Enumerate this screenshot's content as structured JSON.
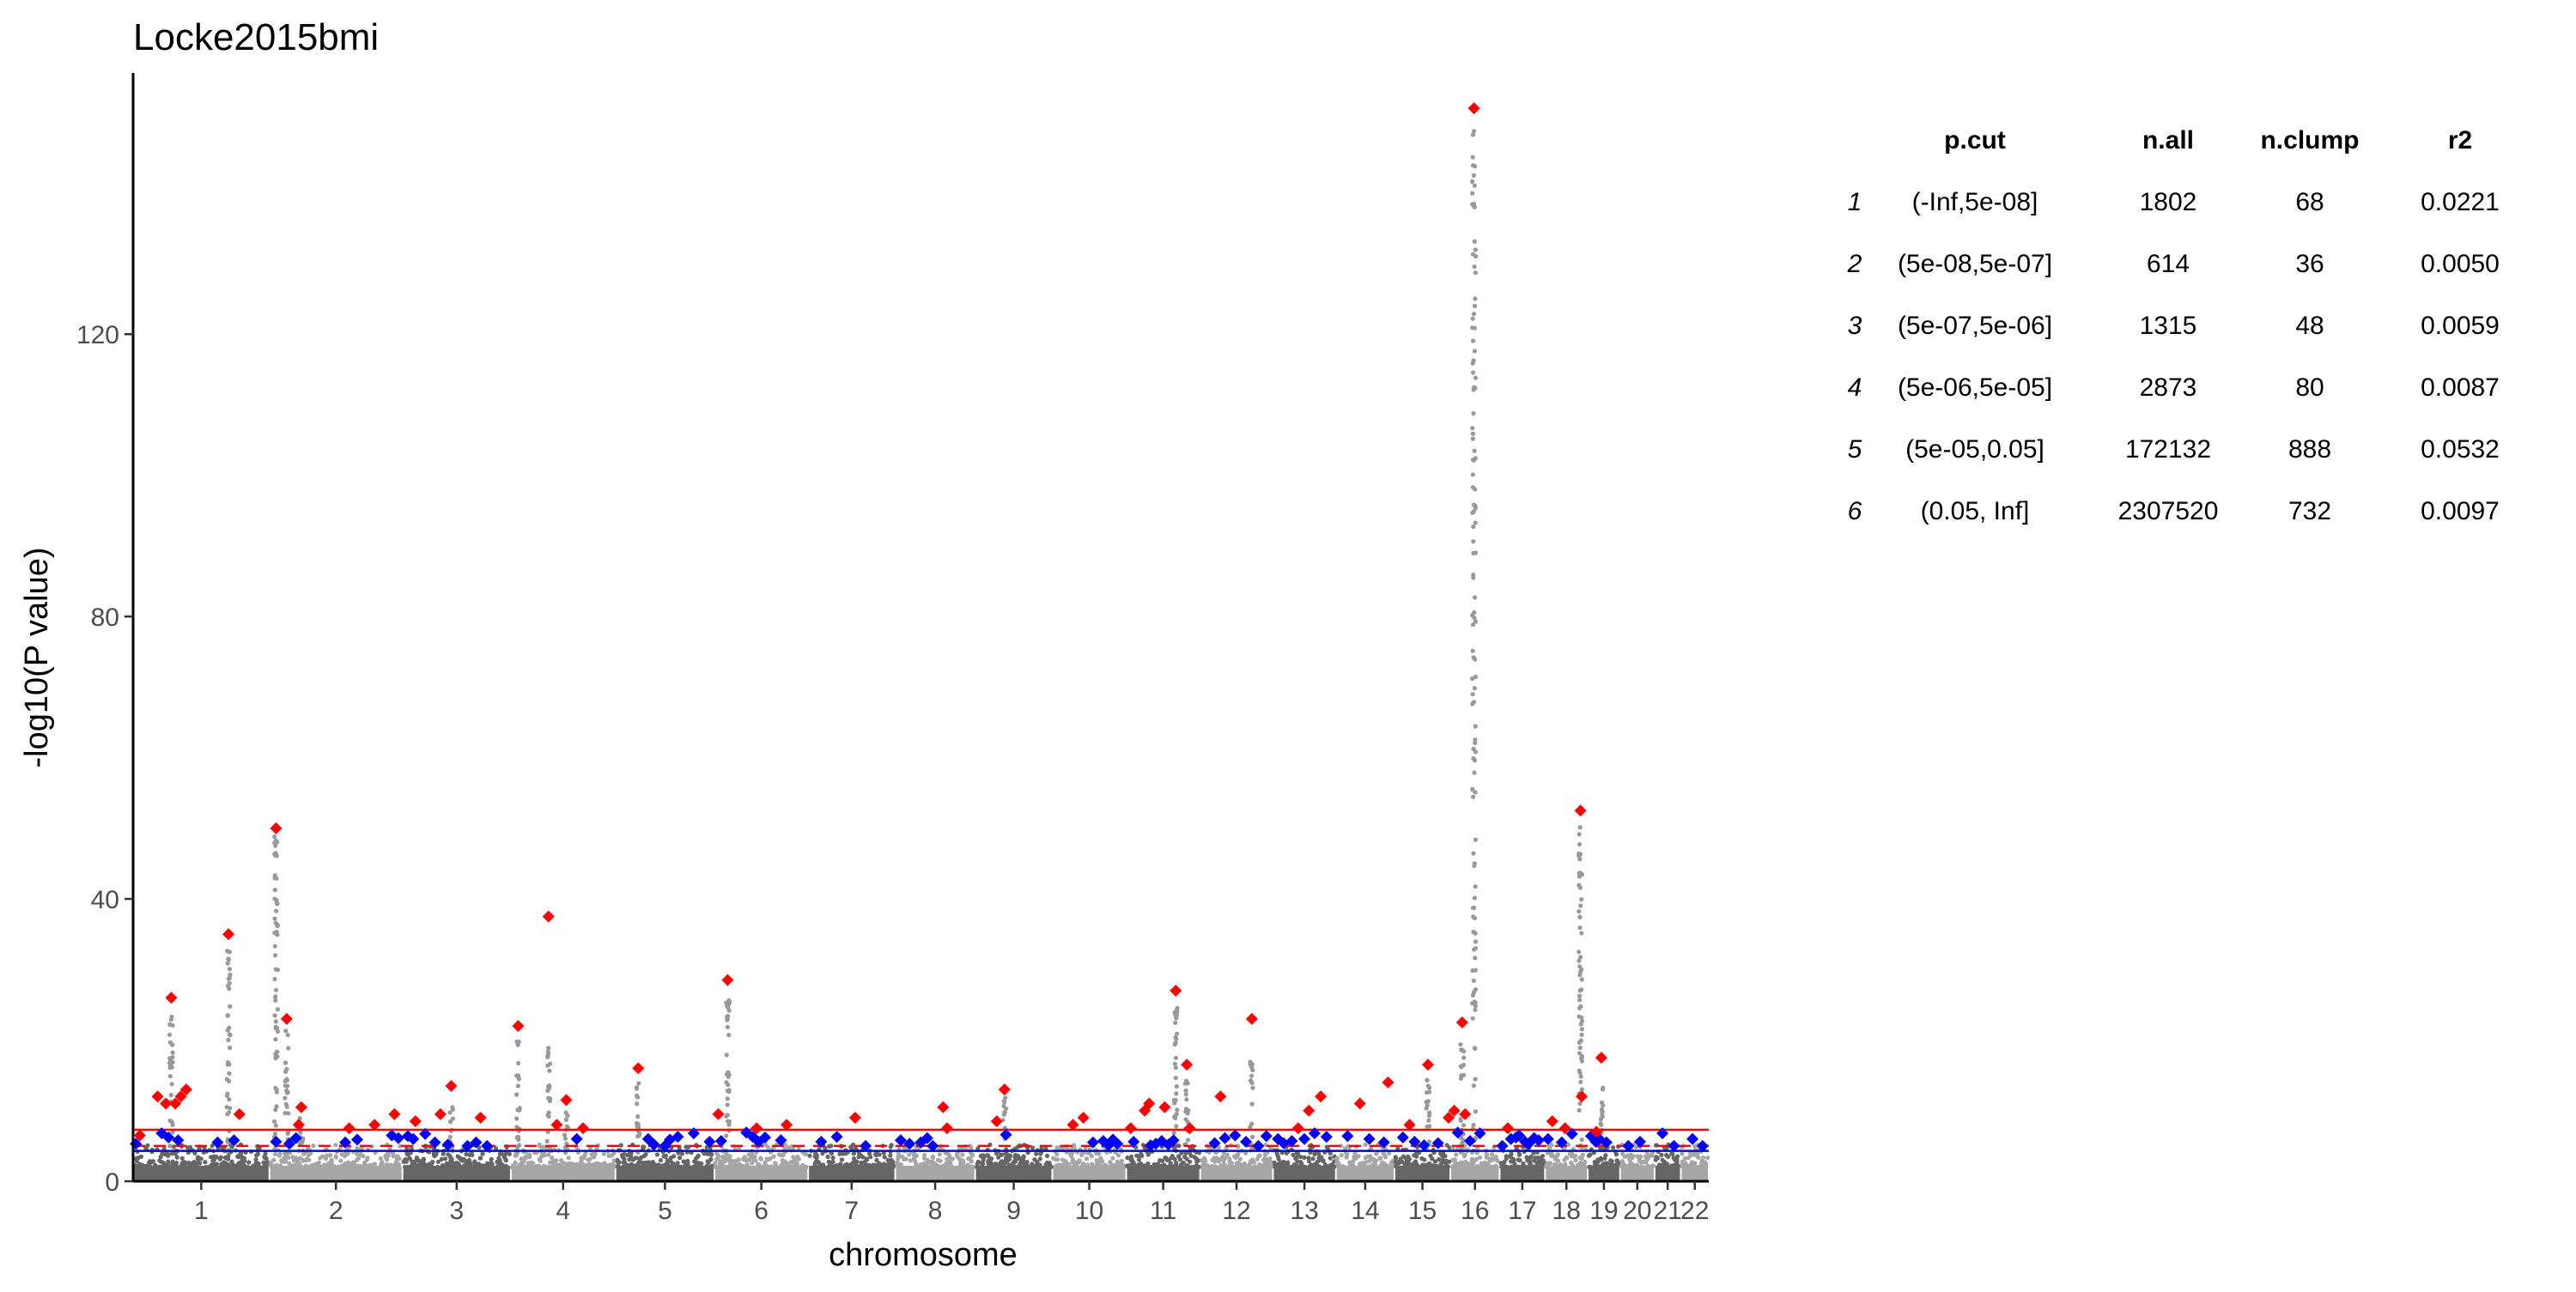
{
  "chart_data": {
    "type": "scatter",
    "title": "Locke2015bmi",
    "xlabel": "chromosome",
    "ylabel": "-log10(P value)",
    "ylim": [
      0,
      157
    ],
    "yticks": [
      0,
      40,
      80,
      120
    ],
    "grid": false,
    "chromosomes": [
      {
        "label": "1",
        "size": 249
      },
      {
        "label": "2",
        "size": 243
      },
      {
        "label": "3",
        "size": 198
      },
      {
        "label": "4",
        "size": 191
      },
      {
        "label": "5",
        "size": 181
      },
      {
        "label": "6",
        "size": 171
      },
      {
        "label": "7",
        "size": 159
      },
      {
        "label": "8",
        "size": 146
      },
      {
        "label": "9",
        "size": 141
      },
      {
        "label": "10",
        "size": 135
      },
      {
        "label": "11",
        "size": 135
      },
      {
        "label": "12",
        "size": 133
      },
      {
        "label": "13",
        "size": 115
      },
      {
        "label": "14",
        "size": 107
      },
      {
        "label": "15",
        "size": 102
      },
      {
        "label": "16",
        "size": 90
      },
      {
        "label": "17",
        "size": 83
      },
      {
        "label": "18",
        "size": 78
      },
      {
        "label": "19",
        "size": 59
      },
      {
        "label": "20",
        "size": 63
      },
      {
        "label": "21",
        "size": 48
      },
      {
        "label": "22",
        "size": 51
      }
    ],
    "threshold_lines": [
      {
        "value": 7.3,
        "style": "solid",
        "color": "#ff0000"
      },
      {
        "value": 5.0,
        "style": "dashed",
        "color": "#ff0000"
      },
      {
        "value": 4.3,
        "style": "solid",
        "color": "#0000ff"
      }
    ],
    "peaks": [
      {
        "chr": "1",
        "pos": 0.05,
        "y": 6.5
      },
      {
        "chr": "1",
        "pos": 0.18,
        "y": 12
      },
      {
        "chr": "1",
        "pos": 0.24,
        "y": 11
      },
      {
        "chr": "1",
        "pos": 0.28,
        "y": 26
      },
      {
        "chr": "1",
        "pos": 0.31,
        "y": 11
      },
      {
        "chr": "1",
        "pos": 0.35,
        "y": 12
      },
      {
        "chr": "1",
        "pos": 0.39,
        "y": 13
      },
      {
        "chr": "1",
        "pos": 0.7,
        "y": 35
      },
      {
        "chr": "1",
        "pos": 0.78,
        "y": 9.5
      },
      {
        "chr": "2",
        "pos": 0.05,
        "y": 50
      },
      {
        "chr": "2",
        "pos": 0.13,
        "y": 23
      },
      {
        "chr": "2",
        "pos": 0.24,
        "y": 10.5
      },
      {
        "chr": "2",
        "pos": 0.22,
        "y": 8
      },
      {
        "chr": "2",
        "pos": 0.6,
        "y": 7.5
      },
      {
        "chr": "2",
        "pos": 0.79,
        "y": 8
      },
      {
        "chr": "2",
        "pos": 0.94,
        "y": 9.5
      },
      {
        "chr": "3",
        "pos": 0.12,
        "y": 8.5
      },
      {
        "chr": "3",
        "pos": 0.35,
        "y": 9.5
      },
      {
        "chr": "3",
        "pos": 0.45,
        "y": 13.5
      },
      {
        "chr": "3",
        "pos": 0.72,
        "y": 9
      },
      {
        "chr": "4",
        "pos": 0.07,
        "y": 22
      },
      {
        "chr": "4",
        "pos": 0.36,
        "y": 37.5
      },
      {
        "chr": "4",
        "pos": 0.44,
        "y": 8
      },
      {
        "chr": "4",
        "pos": 0.53,
        "y": 11.5
      },
      {
        "chr": "4",
        "pos": 0.69,
        "y": 7.5
      },
      {
        "chr": "5",
        "pos": 0.23,
        "y": 16
      },
      {
        "chr": "6",
        "pos": 0.04,
        "y": 9.5
      },
      {
        "chr": "6",
        "pos": 0.14,
        "y": 28.5
      },
      {
        "chr": "6",
        "pos": 0.45,
        "y": 7.5
      },
      {
        "chr": "6",
        "pos": 0.77,
        "y": 8
      },
      {
        "chr": "7",
        "pos": 0.54,
        "y": 9
      },
      {
        "chr": "8",
        "pos": 0.6,
        "y": 10.5
      },
      {
        "chr": "8",
        "pos": 0.65,
        "y": 7.5
      },
      {
        "chr": "9",
        "pos": 0.28,
        "y": 8.5
      },
      {
        "chr": "9",
        "pos": 0.38,
        "y": 13
      },
      {
        "chr": "10",
        "pos": 0.28,
        "y": 8
      },
      {
        "chr": "10",
        "pos": 0.42,
        "y": 9
      },
      {
        "chr": "11",
        "pos": 0.06,
        "y": 7.5
      },
      {
        "chr": "11",
        "pos": 0.25,
        "y": 10
      },
      {
        "chr": "11",
        "pos": 0.31,
        "y": 11
      },
      {
        "chr": "11",
        "pos": 0.52,
        "y": 10.5
      },
      {
        "chr": "11",
        "pos": 0.67,
        "y": 27
      },
      {
        "chr": "11",
        "pos": 0.82,
        "y": 16.5
      },
      {
        "chr": "11",
        "pos": 0.86,
        "y": 7.5
      },
      {
        "chr": "12",
        "pos": 0.28,
        "y": 12
      },
      {
        "chr": "12",
        "pos": 0.71,
        "y": 23
      },
      {
        "chr": "13",
        "pos": 0.4,
        "y": 7.5
      },
      {
        "chr": "13",
        "pos": 0.57,
        "y": 10
      },
      {
        "chr": "13",
        "pos": 0.76,
        "y": 12
      },
      {
        "chr": "14",
        "pos": 0.41,
        "y": 11
      },
      {
        "chr": "14",
        "pos": 0.89,
        "y": 14
      },
      {
        "chr": "15",
        "pos": 0.27,
        "y": 8
      },
      {
        "chr": "15",
        "pos": 0.6,
        "y": 16.5
      },
      {
        "chr": "15",
        "pos": 0.97,
        "y": 9
      },
      {
        "chr": "16",
        "pos": 0.08,
        "y": 10
      },
      {
        "chr": "16",
        "pos": 0.24,
        "y": 22.5
      },
      {
        "chr": "16",
        "pos": 0.3,
        "y": 9.5
      },
      {
        "chr": "16",
        "pos": 0.48,
        "y": 152
      },
      {
        "chr": "17",
        "pos": 0.18,
        "y": 7.5
      },
      {
        "chr": "18",
        "pos": 0.17,
        "y": 8.5
      },
      {
        "chr": "18",
        "pos": 0.47,
        "y": 7.5
      },
      {
        "chr": "18",
        "pos": 0.83,
        "y": 52.5
      },
      {
        "chr": "18",
        "pos": 0.86,
        "y": 12
      },
      {
        "chr": "19",
        "pos": 0.27,
        "y": 7
      },
      {
        "chr": "19",
        "pos": 0.42,
        "y": 17.5
      }
    ],
    "suggestive": [
      {
        "chr": "1",
        "pos": 0.02,
        "y": 5.3
      },
      {
        "chr": "1",
        "pos": 0.21,
        "y": 6.8
      },
      {
        "chr": "1",
        "pos": 0.26,
        "y": 6.2
      },
      {
        "chr": "1",
        "pos": 0.33,
        "y": 5.8
      },
      {
        "chr": "1",
        "pos": 0.62,
        "y": 5.5
      },
      {
        "chr": "1",
        "pos": 0.74,
        "y": 5.8
      },
      {
        "chr": "2",
        "pos": 0.05,
        "y": 5.6
      },
      {
        "chr": "2",
        "pos": 0.15,
        "y": 5.3
      },
      {
        "chr": "2",
        "pos": 0.2,
        "y": 6.1
      },
      {
        "chr": "2",
        "pos": 0.57,
        "y": 5.5
      },
      {
        "chr": "2",
        "pos": 0.66,
        "y": 5.9
      },
      {
        "chr": "2",
        "pos": 0.92,
        "y": 6.5
      },
      {
        "chr": "2",
        "pos": 0.97,
        "y": 6.1
      },
      {
        "chr": "3",
        "pos": 0.05,
        "y": 6.4
      },
      {
        "chr": "3",
        "pos": 0.1,
        "y": 6.0
      },
      {
        "chr": "3",
        "pos": 0.21,
        "y": 6.7
      },
      {
        "chr": "3",
        "pos": 0.3,
        "y": 5.5
      },
      {
        "chr": "3",
        "pos": 0.42,
        "y": 5.2
      },
      {
        "chr": "3",
        "pos": 0.6,
        "y": 5.0
      },
      {
        "chr": "3",
        "pos": 0.68,
        "y": 5.5
      },
      {
        "chr": "3",
        "pos": 0.78,
        "y": 5.0
      },
      {
        "chr": "4",
        "pos": 0.63,
        "y": 6.0
      },
      {
        "chr": "5",
        "pos": 0.33,
        "y": 6.0
      },
      {
        "chr": "5",
        "pos": 0.39,
        "y": 5.2
      },
      {
        "chr": "5",
        "pos": 0.5,
        "y": 5.0
      },
      {
        "chr": "5",
        "pos": 0.55,
        "y": 5.9
      },
      {
        "chr": "5",
        "pos": 0.63,
        "y": 6.3
      },
      {
        "chr": "5",
        "pos": 0.79,
        "y": 6.8
      },
      {
        "chr": "5",
        "pos": 0.95,
        "y": 5.6
      },
      {
        "chr": "6",
        "pos": 0.07,
        "y": 5.7
      },
      {
        "chr": "6",
        "pos": 0.34,
        "y": 6.9
      },
      {
        "chr": "6",
        "pos": 0.41,
        "y": 6.3
      },
      {
        "chr": "6",
        "pos": 0.47,
        "y": 5.6
      },
      {
        "chr": "6",
        "pos": 0.54,
        "y": 6.2
      },
      {
        "chr": "6",
        "pos": 0.71,
        "y": 5.8
      },
      {
        "chr": "7",
        "pos": 0.15,
        "y": 5.6
      },
      {
        "chr": "7",
        "pos": 0.33,
        "y": 6.3
      },
      {
        "chr": "7",
        "pos": 0.66,
        "y": 5.0
      },
      {
        "chr": "8",
        "pos": 0.07,
        "y": 5.8
      },
      {
        "chr": "8",
        "pos": 0.18,
        "y": 5.3
      },
      {
        "chr": "8",
        "pos": 0.32,
        "y": 5.5
      },
      {
        "chr": "8",
        "pos": 0.4,
        "y": 6.1
      },
      {
        "chr": "8",
        "pos": 0.47,
        "y": 5.0
      },
      {
        "chr": "9",
        "pos": 0.4,
        "y": 6.6
      },
      {
        "chr": "10",
        "pos": 0.55,
        "y": 5.5
      },
      {
        "chr": "10",
        "pos": 0.69,
        "y": 5.7
      },
      {
        "chr": "10",
        "pos": 0.76,
        "y": 5.1
      },
      {
        "chr": "10",
        "pos": 0.82,
        "y": 5.9
      },
      {
        "chr": "10",
        "pos": 0.88,
        "y": 5.3
      },
      {
        "chr": "11",
        "pos": 0.1,
        "y": 5.6
      },
      {
        "chr": "11",
        "pos": 0.33,
        "y": 5.1
      },
      {
        "chr": "11",
        "pos": 0.4,
        "y": 5.3
      },
      {
        "chr": "11",
        "pos": 0.48,
        "y": 5.7
      },
      {
        "chr": "11",
        "pos": 0.57,
        "y": 5.2
      },
      {
        "chr": "11",
        "pos": 0.64,
        "y": 5.8
      },
      {
        "chr": "12",
        "pos": 0.2,
        "y": 5.4
      },
      {
        "chr": "12",
        "pos": 0.34,
        "y": 6.1
      },
      {
        "chr": "12",
        "pos": 0.48,
        "y": 6.5
      },
      {
        "chr": "12",
        "pos": 0.63,
        "y": 5.6
      },
      {
        "chr": "12",
        "pos": 0.8,
        "y": 5.0
      },
      {
        "chr": "12",
        "pos": 0.91,
        "y": 6.4
      },
      {
        "chr": "13",
        "pos": 0.08,
        "y": 6.0
      },
      {
        "chr": "13",
        "pos": 0.17,
        "y": 5.4
      },
      {
        "chr": "13",
        "pos": 0.3,
        "y": 5.7
      },
      {
        "chr": "13",
        "pos": 0.5,
        "y": 6.0
      },
      {
        "chr": "13",
        "pos": 0.66,
        "y": 6.8
      },
      {
        "chr": "13",
        "pos": 0.85,
        "y": 6.3
      },
      {
        "chr": "14",
        "pos": 0.2,
        "y": 6.4
      },
      {
        "chr": "14",
        "pos": 0.57,
        "y": 6.0
      },
      {
        "chr": "14",
        "pos": 0.82,
        "y": 5.5
      },
      {
        "chr": "15",
        "pos": 0.15,
        "y": 6.2
      },
      {
        "chr": "15",
        "pos": 0.36,
        "y": 5.6
      },
      {
        "chr": "15",
        "pos": 0.53,
        "y": 5.1
      },
      {
        "chr": "15",
        "pos": 0.78,
        "y": 5.4
      },
      {
        "chr": "16",
        "pos": 0.15,
        "y": 6.9
      },
      {
        "chr": "16",
        "pos": 0.4,
        "y": 5.7
      },
      {
        "chr": "16",
        "pos": 0.6,
        "y": 6.8
      },
      {
        "chr": "17",
        "pos": 0.06,
        "y": 5.0
      },
      {
        "chr": "17",
        "pos": 0.25,
        "y": 6.0
      },
      {
        "chr": "17",
        "pos": 0.36,
        "y": 6.2
      },
      {
        "chr": "17",
        "pos": 0.43,
        "y": 6.5
      },
      {
        "chr": "17",
        "pos": 0.56,
        "y": 5.6
      },
      {
        "chr": "17",
        "pos": 0.64,
        "y": 5.3
      },
      {
        "chr": "17",
        "pos": 0.76,
        "y": 6.1
      },
      {
        "chr": "17",
        "pos": 0.86,
        "y": 5.8
      },
      {
        "chr": "18",
        "pos": 0.07,
        "y": 6.0
      },
      {
        "chr": "18",
        "pos": 0.39,
        "y": 5.5
      },
      {
        "chr": "18",
        "pos": 0.63,
        "y": 6.7
      },
      {
        "chr": "19",
        "pos": 0.1,
        "y": 6.4
      },
      {
        "chr": "19",
        "pos": 0.25,
        "y": 5.6
      },
      {
        "chr": "19",
        "pos": 0.36,
        "y": 6.0
      },
      {
        "chr": "19",
        "pos": 0.58,
        "y": 5.5
      },
      {
        "chr": "20",
        "pos": 0.24,
        "y": 5.0
      },
      {
        "chr": "20",
        "pos": 0.58,
        "y": 5.6
      },
      {
        "chr": "21",
        "pos": 0.3,
        "y": 6.8
      },
      {
        "chr": "21",
        "pos": 0.74,
        "y": 5.0
      },
      {
        "chr": "22",
        "pos": 0.42,
        "y": 6.0
      },
      {
        "chr": "22",
        "pos": 0.78,
        "y": 5.0
      }
    ],
    "columns": [
      {
        "chr": "1",
        "pos": 0.28,
        "top": 24
      },
      {
        "chr": "1",
        "pos": 0.7,
        "top": 33
      },
      {
        "chr": "2",
        "pos": 0.05,
        "top": 49
      },
      {
        "chr": "2",
        "pos": 0.13,
        "top": 22
      },
      {
        "chr": "2",
        "pos": 0.24,
        "top": 9
      },
      {
        "chr": "3",
        "pos": 0.45,
        "top": 12
      },
      {
        "chr": "4",
        "pos": 0.07,
        "top": 20
      },
      {
        "chr": "4",
        "pos": 0.36,
        "top": 19
      },
      {
        "chr": "4",
        "pos": 0.53,
        "top": 10
      },
      {
        "chr": "5",
        "pos": 0.23,
        "top": 15
      },
      {
        "chr": "6",
        "pos": 0.14,
        "top": 27
      },
      {
        "chr": "9",
        "pos": 0.38,
        "top": 12
      },
      {
        "chr": "11",
        "pos": 0.67,
        "top": 25
      },
      {
        "chr": "11",
        "pos": 0.82,
        "top": 15
      },
      {
        "chr": "12",
        "pos": 0.71,
        "top": 17
      },
      {
        "chr": "15",
        "pos": 0.6,
        "top": 15
      },
      {
        "chr": "16",
        "pos": 0.24,
        "top": 21
      },
      {
        "chr": "16",
        "pos": 0.48,
        "top": 150
      },
      {
        "chr": "18",
        "pos": 0.83,
        "top": 51
      },
      {
        "chr": "19",
        "pos": 0.42,
        "top": 14
      }
    ],
    "colors": {
      "odd_chr": "#666666",
      "even_chr": "#a6a6a6",
      "top_hits": "#ff0000",
      "suggestive_hits": "#0000ff",
      "column_points": "#999999"
    },
    "table": {
      "columns": [
        "",
        "p.cut",
        "n.all",
        "n.clump",
        "r2"
      ],
      "rows": [
        [
          "1",
          "(-Inf,5e-08]",
          "1802",
          "68",
          "0.0221"
        ],
        [
          "2",
          "(5e-08,5e-07]",
          "614",
          "36",
          "0.0050"
        ],
        [
          "3",
          "(5e-07,5e-06]",
          "1315",
          "48",
          "0.0059"
        ],
        [
          "4",
          "(5e-06,5e-05]",
          "2873",
          "80",
          "0.0087"
        ],
        [
          "5",
          "(5e-05,0.05]",
          "172132",
          "888",
          "0.0532"
        ],
        [
          "6",
          "(0.05, Inf]",
          "2307520",
          "732",
          "0.0097"
        ]
      ]
    }
  }
}
